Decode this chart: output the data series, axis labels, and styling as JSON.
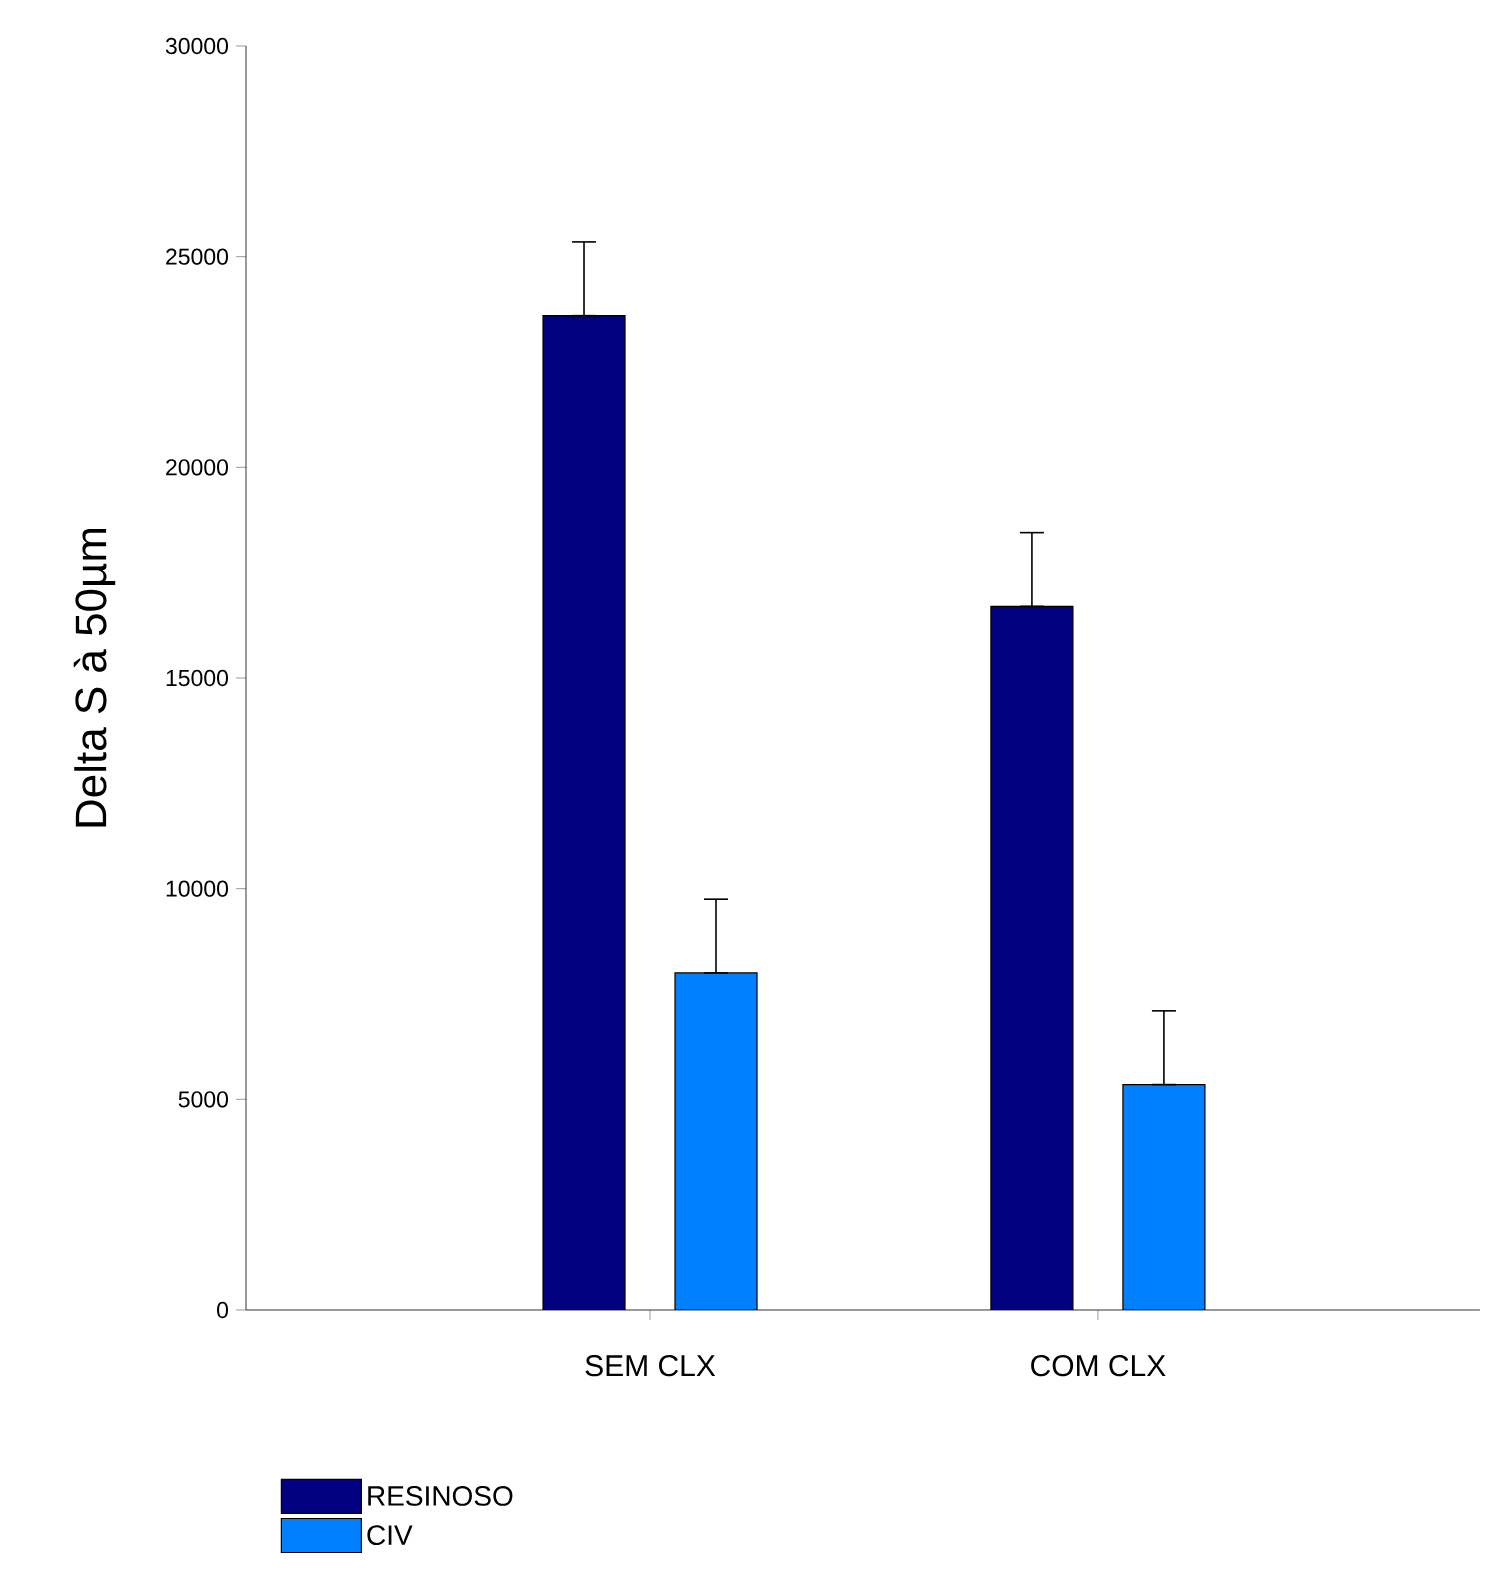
{
  "chart_data": {
    "type": "bar",
    "ylabel": "Delta S à 50µm",
    "categories": [
      "SEM CLX",
      "COM CLX"
    ],
    "series": [
      {
        "name": "RESINOSO",
        "color": "#000080",
        "values": [
          23600,
          16700
        ],
        "errors": [
          [
            23600,
            25350
          ],
          [
            16700,
            18450
          ]
        ]
      },
      {
        "name": "CIV",
        "color": "#0080ff",
        "values": [
          8000,
          5350
        ],
        "errors": [
          [
            8000,
            9750
          ],
          [
            5350,
            7100
          ]
        ]
      }
    ],
    "ylim": [
      0,
      30000
    ],
    "yticks": [
      0,
      5000,
      10000,
      15000,
      20000,
      25000,
      30000
    ],
    "grid": false,
    "legend": "bottom left"
  }
}
